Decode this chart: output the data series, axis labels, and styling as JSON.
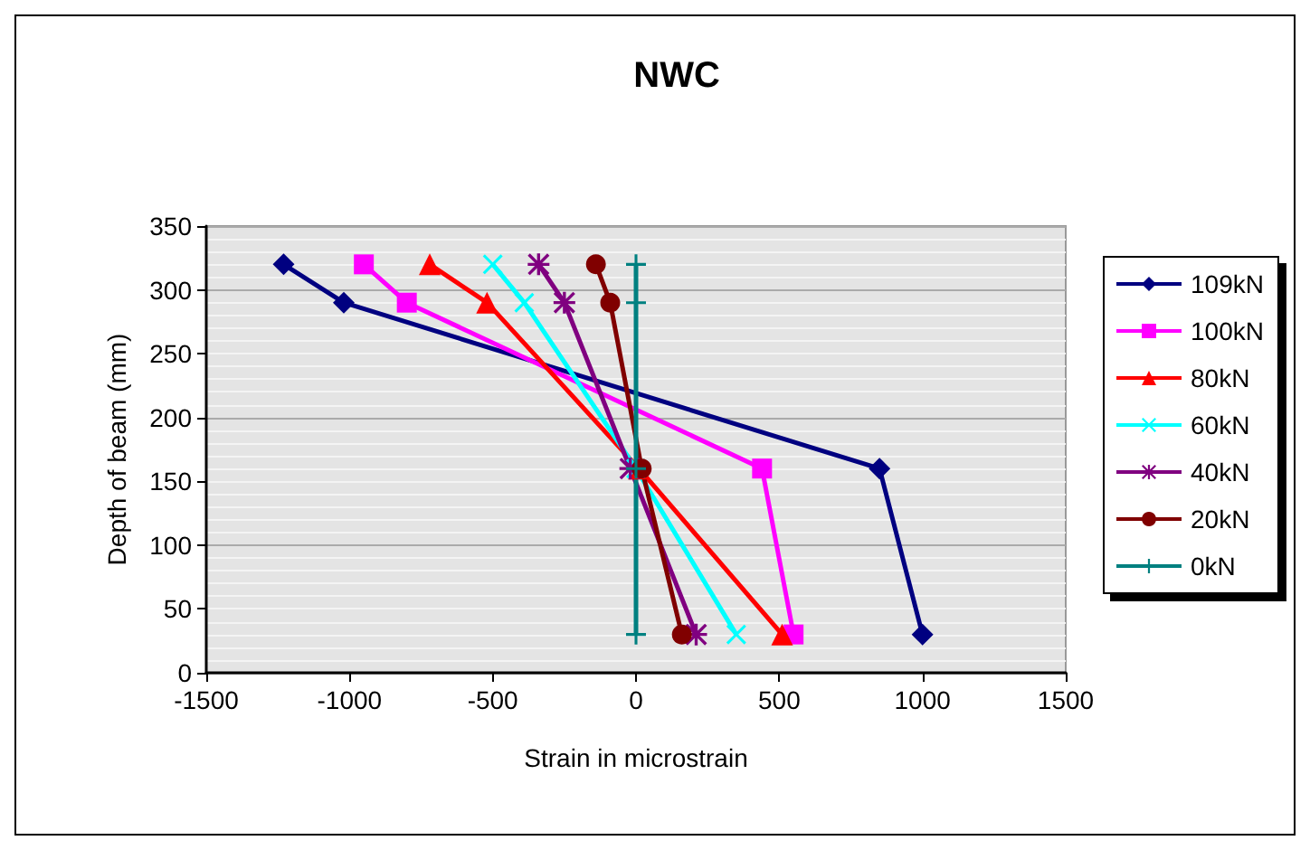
{
  "chart_data": {
    "type": "line",
    "title": "NWC",
    "xlabel": "Strain in microstrain",
    "ylabel": "Depth of beam (mm)",
    "xlim": [
      -1500,
      1500
    ],
    "xticks": [
      -1500,
      -1000,
      -500,
      0,
      500,
      1000,
      1500
    ],
    "ylim": [
      0,
      350
    ],
    "yticks": [
      0,
      50,
      100,
      150,
      200,
      250,
      300,
      350
    ],
    "grid": "y",
    "legend": "right",
    "series": [
      {
        "name": "109kN",
        "color": "#000080",
        "marker": "diamond",
        "x": [
          -1230,
          -1020,
          850,
          1000
        ],
        "values": [
          320,
          290,
          160,
          30
        ]
      },
      {
        "name": "100kN",
        "color": "#ff00ff",
        "marker": "square",
        "x": [
          -950,
          -800,
          440,
          550
        ],
        "values": [
          320,
          290,
          160,
          30
        ]
      },
      {
        "name": "80kN",
        "color": "#ff0000",
        "marker": "triangle",
        "x": [
          -720,
          -520,
          10,
          510
        ],
        "values": [
          320,
          290,
          160,
          30
        ]
      },
      {
        "name": "60kN",
        "color": "#00ffff",
        "marker": "x",
        "x": [
          -500,
          -390,
          0,
          350
        ],
        "values": [
          320,
          290,
          160,
          30
        ]
      },
      {
        "name": "40kN",
        "color": "#800080",
        "marker": "star",
        "x": [
          -340,
          -250,
          -20,
          210
        ],
        "values": [
          320,
          290,
          160,
          30
        ]
      },
      {
        "name": "20kN",
        "color": "#800000",
        "marker": "circle",
        "x": [
          -140,
          -90,
          20,
          160
        ],
        "values": [
          320,
          290,
          160,
          30
        ]
      },
      {
        "name": "0kN",
        "color": "#008080",
        "marker": "cross",
        "x": [
          0,
          0,
          0,
          0
        ],
        "values": [
          320,
          290,
          160,
          30
        ]
      }
    ]
  }
}
